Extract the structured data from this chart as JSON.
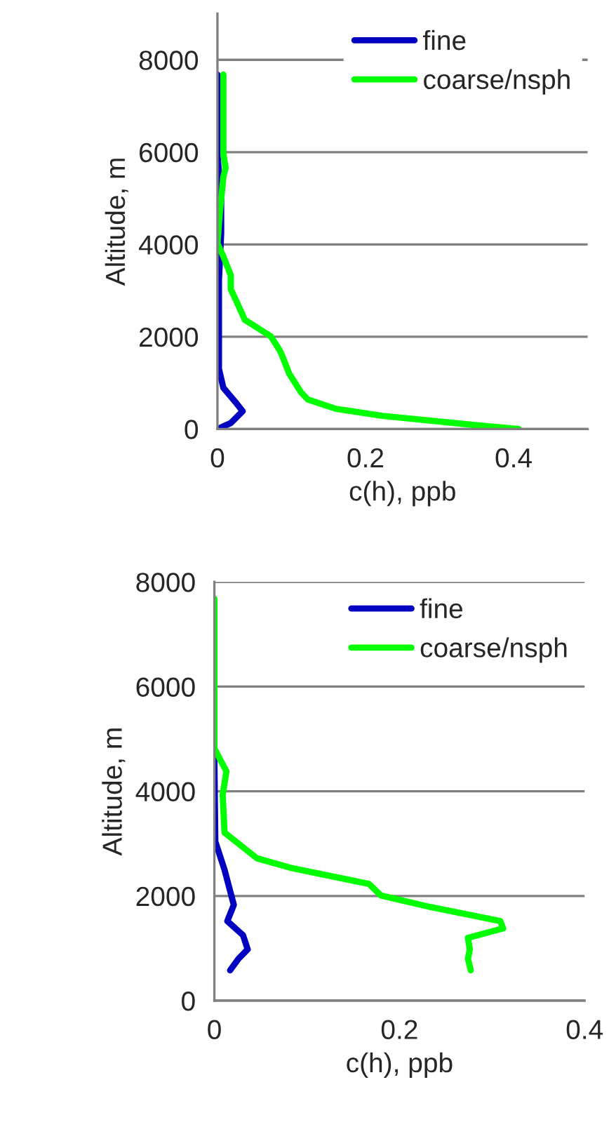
{
  "chart_data": [
    {
      "type": "line",
      "xlabel": "c(h), ppb",
      "ylabel": "Altitude, m",
      "xlim": [
        0,
        0.5
      ],
      "xticks": [
        0,
        0.2,
        0.4
      ],
      "ylim": [
        0,
        9000
      ],
      "yticks": [
        0,
        2000,
        4000,
        6000,
        8000
      ],
      "grid": "y",
      "legend": "top right",
      "series": [
        {
          "name": "fine",
          "color": "#0000c0",
          "x": [
            0,
            0.018,
            0.034,
            0.024,
            0.008,
            0.002,
            0.002,
            0.005,
            0.005,
            0,
            0
          ],
          "values": [
            0,
            130,
            386,
            590,
            893,
            1300,
            3230,
            4240,
            4950,
            5960,
            7680
          ]
        },
        {
          "name": "coarse/nsph",
          "color": "#00ff00",
          "x": [
            0.407,
            0.35,
            0.223,
            0.16,
            0.122,
            0.113,
            0.097,
            0.087,
            0.084,
            0.072,
            0.037,
            0.027,
            0.018,
            0.018,
            0.008,
            0,
            0.003,
            0.008,
            0.011,
            0.008,
            0.008
          ],
          "values": [
            0,
            81,
            284,
            437,
            640,
            792,
            1198,
            1604,
            1706,
            2010,
            2365,
            2720,
            3030,
            3330,
            3740,
            4020,
            4650,
            5460,
            5660,
            5960,
            7680
          ]
        }
      ]
    },
    {
      "type": "line",
      "xlabel": "c(h), ppb",
      "ylabel": "Altitude, m",
      "xlim": [
        0,
        0.4
      ],
      "xticks": [
        0,
        0.2,
        0.4
      ],
      "ylim": [
        0,
        8000
      ],
      "yticks": [
        0,
        2000,
        4000,
        6000,
        8000
      ],
      "grid": "y",
      "legend": "top right",
      "series": [
        {
          "name": "fine",
          "color": "#0000c0",
          "x": [
            0,
            0.001,
            0.011,
            0.021,
            0.014,
            0.031,
            0.036,
            0.026,
            0.017
          ],
          "values": [
            4600,
            3040,
            2500,
            1830,
            1520,
            1250,
            980,
            800,
            580
          ]
        },
        {
          "name": "coarse/nsph",
          "color": "#00ff00",
          "x": [
            0,
            0,
            0.013,
            0.009,
            0.011,
            0.046,
            0.082,
            0.167,
            0.18,
            0.233,
            0.309,
            0.312,
            0.274,
            0.276,
            0.274,
            0.277
          ],
          "values": [
            7680,
            4820,
            4380,
            3930,
            3210,
            2720,
            2540,
            2230,
            2010,
            1790,
            1520,
            1380,
            1200,
            980,
            800,
            580
          ]
        }
      ]
    }
  ]
}
